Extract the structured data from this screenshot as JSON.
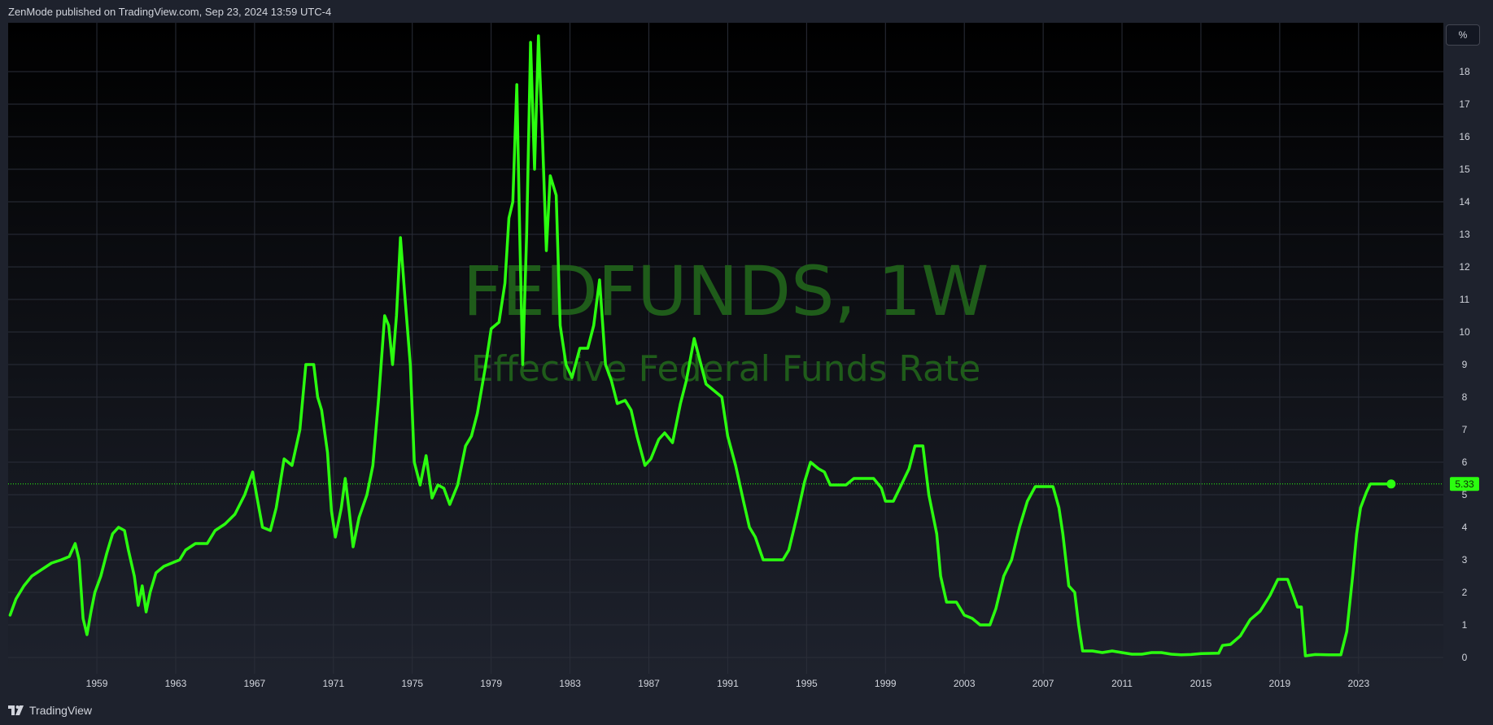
{
  "header": {
    "text": "ZenMode published on TradingView.com, Sep 23, 2024 13:59 UTC-4"
  },
  "watermark": {
    "title": "FEDFUNDS, 1W",
    "subtitle": "Effective Federal Funds Rate"
  },
  "unit_button": {
    "label": "%"
  },
  "footer": {
    "brand": "TradingView"
  },
  "current_value_label": "5.33",
  "colors": {
    "line": "#2bff0f",
    "background_top": "#000000",
    "background_bottom": "#1e222d",
    "grid": "#2a2e39"
  },
  "icons": {
    "brand_logo": "tradingview-logo-icon"
  },
  "chart_data": {
    "type": "line",
    "title": "FEDFUNDS, 1W",
    "subtitle": "Effective Federal Funds Rate",
    "xlabel": "",
    "ylabel": "",
    "unit": "%",
    "xlim": [
      1954.5,
      2027.3
    ],
    "ylim": [
      -0.5,
      19.5
    ],
    "grid": true,
    "x_ticks": [
      "1959",
      "1963",
      "1967",
      "1971",
      "1975",
      "1979",
      "1983",
      "1987",
      "1991",
      "1995",
      "1999",
      "2003",
      "2007",
      "2011",
      "2015",
      "2019",
      "2023"
    ],
    "y_ticks": [
      "0",
      "1",
      "2",
      "3",
      "4",
      "5",
      "6",
      "7",
      "8",
      "9",
      "10",
      "11",
      "12",
      "13",
      "14",
      "15",
      "16",
      "17",
      "18"
    ],
    "last_value": 5.33,
    "series": [
      {
        "values": [
          [
            1954.6,
            1.3
          ],
          [
            1954.9,
            1.8
          ],
          [
            1955.3,
            2.2
          ],
          [
            1955.7,
            2.5
          ],
          [
            1956.2,
            2.7
          ],
          [
            1956.7,
            2.9
          ],
          [
            1957.2,
            3.0
          ],
          [
            1957.6,
            3.1
          ],
          [
            1957.9,
            3.5
          ],
          [
            1958.1,
            3.0
          ],
          [
            1958.3,
            1.2
          ],
          [
            1958.5,
            0.7
          ],
          [
            1958.7,
            1.4
          ],
          [
            1958.9,
            2.0
          ],
          [
            1959.2,
            2.5
          ],
          [
            1959.5,
            3.2
          ],
          [
            1959.8,
            3.8
          ],
          [
            1960.1,
            4.0
          ],
          [
            1960.4,
            3.9
          ],
          [
            1960.6,
            3.3
          ],
          [
            1960.9,
            2.5
          ],
          [
            1961.1,
            1.6
          ],
          [
            1961.3,
            2.2
          ],
          [
            1961.5,
            1.4
          ],
          [
            1961.7,
            2.0
          ],
          [
            1962.0,
            2.6
          ],
          [
            1962.4,
            2.8
          ],
          [
            1962.8,
            2.9
          ],
          [
            1963.2,
            3.0
          ],
          [
            1963.5,
            3.3
          ],
          [
            1964.0,
            3.5
          ],
          [
            1964.6,
            3.5
          ],
          [
            1965.0,
            3.9
          ],
          [
            1965.5,
            4.1
          ],
          [
            1966.0,
            4.4
          ],
          [
            1966.5,
            5.0
          ],
          [
            1966.9,
            5.7
          ],
          [
            1967.1,
            5.0
          ],
          [
            1967.4,
            4.0
          ],
          [
            1967.8,
            3.9
          ],
          [
            1968.1,
            4.6
          ],
          [
            1968.5,
            6.1
          ],
          [
            1968.9,
            5.9
          ],
          [
            1969.3,
            7.0
          ],
          [
            1969.6,
            9.0
          ],
          [
            1970.0,
            9.0
          ],
          [
            1970.2,
            8.0
          ],
          [
            1970.4,
            7.6
          ],
          [
            1970.7,
            6.3
          ],
          [
            1970.9,
            4.5
          ],
          [
            1971.1,
            3.7
          ],
          [
            1971.4,
            4.6
          ],
          [
            1971.6,
            5.5
          ],
          [
            1971.8,
            4.5
          ],
          [
            1972.0,
            3.4
          ],
          [
            1972.3,
            4.3
          ],
          [
            1972.7,
            5.0
          ],
          [
            1973.0,
            5.9
          ],
          [
            1973.3,
            8.0
          ],
          [
            1973.6,
            10.5
          ],
          [
            1973.8,
            10.2
          ],
          [
            1974.0,
            9.0
          ],
          [
            1974.2,
            10.5
          ],
          [
            1974.4,
            12.9
          ],
          [
            1974.6,
            11.3
          ],
          [
            1974.9,
            9.0
          ],
          [
            1975.1,
            6.0
          ],
          [
            1975.4,
            5.3
          ],
          [
            1975.7,
            6.2
          ],
          [
            1976.0,
            4.9
          ],
          [
            1976.3,
            5.3
          ],
          [
            1976.6,
            5.2
          ],
          [
            1976.9,
            4.7
          ],
          [
            1977.3,
            5.3
          ],
          [
            1977.7,
            6.5
          ],
          [
            1978.0,
            6.8
          ],
          [
            1978.3,
            7.5
          ],
          [
            1978.7,
            8.9
          ],
          [
            1979.0,
            10.1
          ],
          [
            1979.4,
            10.3
          ],
          [
            1979.7,
            11.5
          ],
          [
            1979.9,
            13.5
          ],
          [
            1980.1,
            14.0
          ],
          [
            1980.3,
            17.6
          ],
          [
            1980.45,
            13.0
          ],
          [
            1980.6,
            9.0
          ],
          [
            1980.8,
            13.0
          ],
          [
            1981.0,
            18.9
          ],
          [
            1981.2,
            15.0
          ],
          [
            1981.4,
            19.1
          ],
          [
            1981.6,
            16.0
          ],
          [
            1981.8,
            12.5
          ],
          [
            1982.0,
            14.8
          ],
          [
            1982.3,
            14.2
          ],
          [
            1982.5,
            10.2
          ],
          [
            1982.8,
            9.0
          ],
          [
            1983.1,
            8.6
          ],
          [
            1983.5,
            9.5
          ],
          [
            1983.9,
            9.5
          ],
          [
            1984.2,
            10.2
          ],
          [
            1984.5,
            11.6
          ],
          [
            1984.8,
            9.0
          ],
          [
            1985.1,
            8.5
          ],
          [
            1985.4,
            7.8
          ],
          [
            1985.8,
            7.9
          ],
          [
            1986.1,
            7.6
          ],
          [
            1986.4,
            6.8
          ],
          [
            1986.8,
            5.9
          ],
          [
            1987.1,
            6.1
          ],
          [
            1987.5,
            6.7
          ],
          [
            1987.8,
            6.9
          ],
          [
            1988.2,
            6.6
          ],
          [
            1988.6,
            7.8
          ],
          [
            1988.9,
            8.5
          ],
          [
            1989.3,
            9.8
          ],
          [
            1989.6,
            9.1
          ],
          [
            1989.9,
            8.4
          ],
          [
            1990.3,
            8.2
          ],
          [
            1990.7,
            8.0
          ],
          [
            1991.0,
            6.8
          ],
          [
            1991.4,
            5.9
          ],
          [
            1991.8,
            4.8
          ],
          [
            1992.1,
            4.0
          ],
          [
            1992.4,
            3.7
          ],
          [
            1992.8,
            3.0
          ],
          [
            1993.3,
            3.0
          ],
          [
            1993.8,
            3.0
          ],
          [
            1994.1,
            3.3
          ],
          [
            1994.5,
            4.3
          ],
          [
            1994.9,
            5.4
          ],
          [
            1995.2,
            6.0
          ],
          [
            1995.6,
            5.8
          ],
          [
            1995.9,
            5.7
          ],
          [
            1996.2,
            5.3
          ],
          [
            1996.6,
            5.3
          ],
          [
            1997.0,
            5.3
          ],
          [
            1997.4,
            5.5
          ],
          [
            1997.9,
            5.5
          ],
          [
            1998.4,
            5.5
          ],
          [
            1998.8,
            5.2
          ],
          [
            1999.0,
            4.8
          ],
          [
            1999.4,
            4.8
          ],
          [
            1999.8,
            5.3
          ],
          [
            2000.2,
            5.8
          ],
          [
            2000.5,
            6.5
          ],
          [
            2000.9,
            6.5
          ],
          [
            2001.2,
            5.0
          ],
          [
            2001.6,
            3.8
          ],
          [
            2001.8,
            2.5
          ],
          [
            2002.1,
            1.7
          ],
          [
            2002.6,
            1.7
          ],
          [
            2003.0,
            1.3
          ],
          [
            2003.4,
            1.2
          ],
          [
            2003.8,
            1.0
          ],
          [
            2004.3,
            1.0
          ],
          [
            2004.6,
            1.5
          ],
          [
            2005.0,
            2.5
          ],
          [
            2005.4,
            3.0
          ],
          [
            2005.8,
            4.0
          ],
          [
            2006.2,
            4.8
          ],
          [
            2006.6,
            5.25
          ],
          [
            2007.0,
            5.25
          ],
          [
            2007.5,
            5.25
          ],
          [
            2007.8,
            4.6
          ],
          [
            2008.0,
            3.8
          ],
          [
            2008.3,
            2.2
          ],
          [
            2008.6,
            2.0
          ],
          [
            2008.8,
            1.0
          ],
          [
            2009.0,
            0.2
          ],
          [
            2009.5,
            0.2
          ],
          [
            2010.0,
            0.15
          ],
          [
            2010.5,
            0.2
          ],
          [
            2011.0,
            0.15
          ],
          [
            2011.5,
            0.1
          ],
          [
            2012.0,
            0.1
          ],
          [
            2012.5,
            0.15
          ],
          [
            2013.0,
            0.15
          ],
          [
            2013.5,
            0.1
          ],
          [
            2014.0,
            0.08
          ],
          [
            2014.5,
            0.09
          ],
          [
            2015.0,
            0.12
          ],
          [
            2015.9,
            0.13
          ],
          [
            2016.1,
            0.37
          ],
          [
            2016.5,
            0.4
          ],
          [
            2017.0,
            0.66
          ],
          [
            2017.5,
            1.16
          ],
          [
            2018.0,
            1.42
          ],
          [
            2018.5,
            1.9
          ],
          [
            2018.9,
            2.4
          ],
          [
            2019.4,
            2.4
          ],
          [
            2019.7,
            1.9
          ],
          [
            2019.9,
            1.55
          ],
          [
            2020.1,
            1.55
          ],
          [
            2020.3,
            0.05
          ],
          [
            2020.8,
            0.09
          ],
          [
            2021.5,
            0.08
          ],
          [
            2022.1,
            0.08
          ],
          [
            2022.4,
            0.8
          ],
          [
            2022.7,
            2.5
          ],
          [
            2022.9,
            3.8
          ],
          [
            2023.1,
            4.6
          ],
          [
            2023.4,
            5.08
          ],
          [
            2023.6,
            5.33
          ],
          [
            2024.1,
            5.33
          ],
          [
            2024.65,
            5.33
          ]
        ]
      }
    ]
  }
}
